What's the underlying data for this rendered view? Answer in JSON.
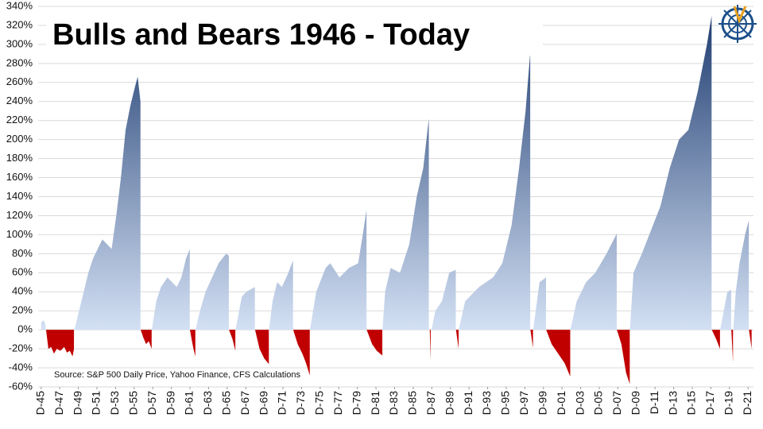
{
  "chart_data": {
    "type": "area",
    "title": "Bulls and Bears 1946 - Today",
    "note": "Source:  S&P 500 Daily Price, Yahoo Finance, CFS Calculations",
    "up_color": "#1c3a6e",
    "up_color_base": "#d3e0f4",
    "down_color": "#c00000",
    "grid": true,
    "x": [
      1945.92,
      1946.2,
      1946.4,
      null,
      1946.45,
      1946.7,
      1947,
      1947.3,
      1947.6,
      1948,
      1948.4,
      1948.7,
      1949,
      1949.3,
      1949.45,
      null,
      1949.5,
      1950,
      1950.5,
      1951,
      1951.5,
      1952,
      1952.5,
      1953,
      1953.5,
      1954,
      1954.5,
      1955,
      1955.5,
      1956,
      1956.3,
      1956.6,
      null,
      1956.62,
      1956.9,
      1957.2,
      1957.5,
      1957.8,
      null,
      1957.82,
      1958.3,
      1958.8,
      1959.5,
      1960,
      1960.5,
      1961,
      1961.5,
      1961.9,
      null,
      1961.92,
      1962.1,
      1962.3,
      1962.5,
      null,
      1962.52,
      1963,
      1963.6,
      1964.3,
      1965,
      1965.8,
      1966.1,
      null,
      1966.12,
      1966.5,
      1966.8,
      null,
      1966.82,
      1967.5,
      1968,
      1968.9,
      null,
      1968.92,
      1969.4,
      1969.9,
      1970.4,
      null,
      1970.42,
      1970.8,
      1971.3,
      1971.8,
      1972.5,
      1973.0,
      null,
      1973.02,
      1973.5,
      1974,
      1974.4,
      1974.8,
      null,
      1974.82,
      1975.5,
      1976.5,
      1977,
      1978,
      1979,
      1980,
      1980.5,
      1980.9,
      null,
      1980.92,
      1981.5,
      1982,
      1982.6,
      null,
      1982.62,
      1982.9,
      1983.5,
      1984.5,
      1985.5,
      1986.3,
      1987,
      1987.6,
      null,
      1987.7,
      1987.8,
      null,
      1987.9,
      1988.3,
      1989,
      1989.8,
      1990.5,
      null,
      1990.52,
      1990.8,
      null,
      1990.82,
      1991.5,
      1993,
      1994.5,
      1995.5,
      1996.5,
      1997.3,
      1998,
      1998.5,
      null,
      1998.52,
      1998.8,
      null,
      1998.82,
      1999.5,
      2000.2,
      null,
      2000.22,
      2000.8,
      2001.5,
      2002.2,
      2002.8,
      null,
      2002.82,
      2003.5,
      2004.5,
      2005.5,
      2006.7,
      2007.8,
      null,
      2007.82,
      2008.3,
      2008.8,
      2009.2,
      null,
      2009.22,
      2009.6,
      2010.5,
      2011.3,
      2012.5,
      2013.5,
      2014.5,
      2015.5,
      2016.5,
      2017.5,
      2018.0,
      null,
      2018.02,
      2018.5,
      2018.9,
      null,
      2018.92,
      2019.7,
      2020.1,
      null,
      2020.12,
      2020.3,
      null,
      2020.32,
      2020.6,
      2021,
      2021.6,
      2022.0,
      null,
      2022.02,
      2022.3
    ],
    "values": [
      8,
      10,
      5,
      null,
      0,
      -20,
      -18,
      -25,
      -20,
      -22,
      -18,
      -24,
      -22,
      -28,
      -20,
      null,
      0,
      20,
      40,
      60,
      75,
      85,
      95,
      90,
      85,
      120,
      160,
      210,
      235,
      255,
      266,
      240,
      null,
      0,
      -8,
      -15,
      -12,
      -20,
      null,
      0,
      30,
      45,
      55,
      50,
      45,
      55,
      75,
      85,
      null,
      0,
      -10,
      -20,
      -28,
      null,
      0,
      20,
      40,
      55,
      70,
      80,
      78,
      null,
      0,
      -10,
      -22,
      null,
      0,
      35,
      40,
      45,
      null,
      0,
      -20,
      -30,
      -36,
      null,
      0,
      30,
      50,
      45,
      60,
      73,
      null,
      0,
      -15,
      -25,
      -35,
      -48,
      null,
      0,
      40,
      65,
      70,
      55,
      65,
      70,
      100,
      126,
      null,
      0,
      -15,
      -22,
      -27,
      null,
      0,
      40,
      65,
      60,
      90,
      140,
      170,
      222,
      null,
      0,
      -33,
      null,
      0,
      20,
      30,
      60,
      63,
      null,
      0,
      -20,
      null,
      0,
      30,
      45,
      55,
      70,
      110,
      170,
      230,
      291,
      null,
      0,
      -19,
      null,
      0,
      50,
      55,
      null,
      0,
      -15,
      -25,
      -35,
      -49,
      null,
      0,
      30,
      50,
      60,
      80,
      101,
      null,
      0,
      -15,
      -45,
      -57,
      null,
      0,
      60,
      80,
      100,
      130,
      170,
      200,
      210,
      250,
      300,
      330,
      null,
      0,
      -10,
      -20,
      null,
      0,
      40,
      42,
      null,
      0,
      -34,
      null,
      0,
      40,
      70,
      100,
      115,
      null,
      0,
      -20
    ],
    "xlim": [
      1945.6,
      2022.5
    ],
    "xticks": [
      {
        "value": 1945.92,
        "label": "D-45"
      },
      {
        "value": 1947.92,
        "label": "D-47"
      },
      {
        "value": 1949.92,
        "label": "D-49"
      },
      {
        "value": 1951.92,
        "label": "D-51"
      },
      {
        "value": 1953.92,
        "label": "D-53"
      },
      {
        "value": 1955.92,
        "label": "D-55"
      },
      {
        "value": 1957.92,
        "label": "D-57"
      },
      {
        "value": 1959.92,
        "label": "D-59"
      },
      {
        "value": 1961.92,
        "label": "D-61"
      },
      {
        "value": 1963.92,
        "label": "D-63"
      },
      {
        "value": 1965.92,
        "label": "D-65"
      },
      {
        "value": 1967.92,
        "label": "D-67"
      },
      {
        "value": 1969.92,
        "label": "D-69"
      },
      {
        "value": 1971.92,
        "label": "D-71"
      },
      {
        "value": 1973.92,
        "label": "D-73"
      },
      {
        "value": 1975.92,
        "label": "D-75"
      },
      {
        "value": 1977.92,
        "label": "D-77"
      },
      {
        "value": 1979.92,
        "label": "D-79"
      },
      {
        "value": 1981.92,
        "label": "D-81"
      },
      {
        "value": 1983.92,
        "label": "D-83"
      },
      {
        "value": 1985.92,
        "label": "D-85"
      },
      {
        "value": 1987.92,
        "label": "D-87"
      },
      {
        "value": 1989.92,
        "label": "D-89"
      },
      {
        "value": 1991.92,
        "label": "D-91"
      },
      {
        "value": 1993.92,
        "label": "D-93"
      },
      {
        "value": 1995.92,
        "label": "D-95"
      },
      {
        "value": 1997.92,
        "label": "D-97"
      },
      {
        "value": 1999.92,
        "label": "D-99"
      },
      {
        "value": 2001.92,
        "label": "D-01"
      },
      {
        "value": 2003.92,
        "label": "D-03"
      },
      {
        "value": 2005.92,
        "label": "D-05"
      },
      {
        "value": 2007.92,
        "label": "D-07"
      },
      {
        "value": 2009.92,
        "label": "D-09"
      },
      {
        "value": 2011.92,
        "label": "D-11"
      },
      {
        "value": 2013.92,
        "label": "D-13"
      },
      {
        "value": 2015.92,
        "label": "D-15"
      },
      {
        "value": 2017.92,
        "label": "D-17"
      },
      {
        "value": 2019.92,
        "label": "D-19"
      },
      {
        "value": 2021.92,
        "label": "D-21"
      }
    ],
    "ylim": [
      -60,
      340
    ],
    "yticks": [
      {
        "value": -60,
        "label": "-60%"
      },
      {
        "value": -40,
        "label": "-40%"
      },
      {
        "value": -20,
        "label": "-20%"
      },
      {
        "value": 0,
        "label": "0%"
      },
      {
        "value": 20,
        "label": "20%"
      },
      {
        "value": 40,
        "label": "40%"
      },
      {
        "value": 60,
        "label": "60%"
      },
      {
        "value": 80,
        "label": "80%"
      },
      {
        "value": 100,
        "label": "100%"
      },
      {
        "value": 120,
        "label": "120%"
      },
      {
        "value": 140,
        "label": "140%"
      },
      {
        "value": 160,
        "label": "160%"
      },
      {
        "value": 180,
        "label": "180%"
      },
      {
        "value": 200,
        "label": "200%"
      },
      {
        "value": 220,
        "label": "220%"
      },
      {
        "value": 240,
        "label": "240%"
      },
      {
        "value": 260,
        "label": "260%"
      },
      {
        "value": 280,
        "label": "280%"
      },
      {
        "value": 300,
        "label": "300%"
      },
      {
        "value": 320,
        "label": "320%"
      },
      {
        "value": 340,
        "label": "340%"
      }
    ]
  }
}
